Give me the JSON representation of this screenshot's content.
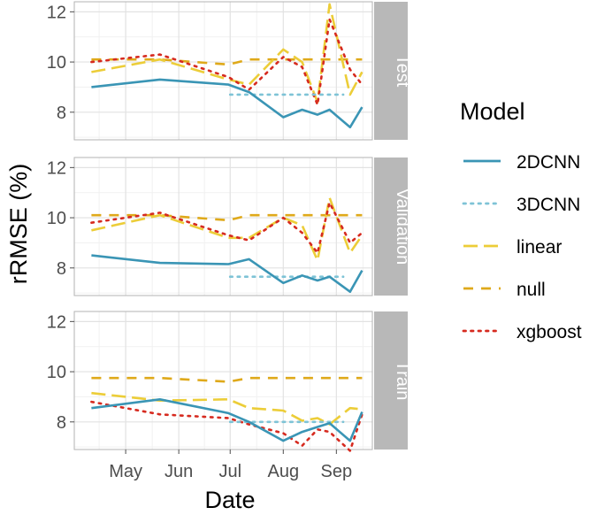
{
  "chart_data": {
    "type": "line",
    "xlabel": "Date",
    "ylabel": "rRMSE (%)",
    "x_tick_labels": [
      "May",
      "Jun",
      "Jul",
      "Aug",
      "Sep"
    ],
    "x_tick_dates": [
      "2019-05-01",
      "2019-06-01",
      "2019-07-01",
      "2019-08-01",
      "2019-09-01"
    ],
    "xlim": [
      "2019-04-01",
      "2019-09-22"
    ],
    "y_ticks": [
      8,
      10,
      12
    ],
    "ylim": [
      6.9,
      12.4
    ],
    "grid": true,
    "legend_title": "Model",
    "legend_position": "right",
    "panels": [
      {
        "label": "Test",
        "series": [
          {
            "name": "2DCNN",
            "x": [
              "2019-04-11",
              "2019-05-21",
              "2019-06-30",
              "2019-07-12",
              "2019-08-01",
              "2019-08-12",
              "2019-08-21",
              "2019-08-28",
              "2019-09-09",
              "2019-09-16"
            ],
            "y": [
              9.0,
              9.3,
              9.1,
              8.8,
              7.8,
              8.1,
              7.9,
              8.1,
              7.4,
              8.2
            ]
          },
          {
            "name": "3DCNN",
            "x": [
              "2019-07-01",
              "2019-09-05"
            ],
            "y": [
              8.7,
              8.7
            ]
          },
          {
            "name": "linear",
            "x": [
              "2019-04-11",
              "2019-05-21",
              "2019-06-30",
              "2019-07-12",
              "2019-08-01",
              "2019-08-12",
              "2019-08-21",
              "2019-08-28",
              "2019-09-09",
              "2019-09-16"
            ],
            "y": [
              9.6,
              10.1,
              9.3,
              9.1,
              10.5,
              10.0,
              8.4,
              12.3,
              8.7,
              9.6
            ]
          },
          {
            "name": "null",
            "x": [
              "2019-04-11",
              "2019-05-21",
              "2019-06-30",
              "2019-07-12",
              "2019-08-01",
              "2019-08-12",
              "2019-08-21",
              "2019-08-28",
              "2019-09-09",
              "2019-09-16"
            ],
            "y": [
              10.1,
              10.1,
              9.9,
              10.1,
              10.1,
              10.1,
              10.1,
              10.1,
              10.1,
              10.1
            ]
          },
          {
            "name": "xgboost",
            "x": [
              "2019-04-11",
              "2019-05-21",
              "2019-06-30",
              "2019-07-12",
              "2019-08-01",
              "2019-08-12",
              "2019-08-21",
              "2019-08-28",
              "2019-09-09",
              "2019-09-16"
            ],
            "y": [
              10.0,
              10.3,
              9.4,
              8.9,
              10.2,
              9.8,
              8.3,
              11.7,
              9.7,
              9.1
            ]
          }
        ]
      },
      {
        "label": "Validation",
        "series": [
          {
            "name": "2DCNN",
            "x": [
              "2019-04-11",
              "2019-05-21",
              "2019-06-30",
              "2019-07-12",
              "2019-08-01",
              "2019-08-12",
              "2019-08-21",
              "2019-08-28",
              "2019-09-09",
              "2019-09-16"
            ],
            "y": [
              8.5,
              8.2,
              8.15,
              8.35,
              7.4,
              7.7,
              7.5,
              7.65,
              7.05,
              7.9
            ]
          },
          {
            "name": "3DCNN",
            "x": [
              "2019-07-01",
              "2019-09-05"
            ],
            "y": [
              7.65,
              7.65
            ]
          },
          {
            "name": "linear",
            "x": [
              "2019-04-11",
              "2019-05-21",
              "2019-06-30",
              "2019-07-12",
              "2019-08-01",
              "2019-08-12",
              "2019-08-21",
              "2019-08-28",
              "2019-09-09",
              "2019-09-16"
            ],
            "y": [
              9.5,
              10.1,
              9.2,
              9.2,
              10.0,
              9.7,
              8.3,
              10.8,
              8.6,
              9.3
            ]
          },
          {
            "name": "null",
            "x": [
              "2019-04-11",
              "2019-05-21",
              "2019-06-30",
              "2019-07-12",
              "2019-08-01",
              "2019-08-12",
              "2019-08-21",
              "2019-08-28",
              "2019-09-09",
              "2019-09-16"
            ],
            "y": [
              10.1,
              10.1,
              9.9,
              10.1,
              10.1,
              10.1,
              10.1,
              10.1,
              10.1,
              10.1
            ]
          },
          {
            "name": "xgboost",
            "x": [
              "2019-04-11",
              "2019-05-21",
              "2019-06-30",
              "2019-07-12",
              "2019-08-01",
              "2019-08-12",
              "2019-08-21",
              "2019-08-28",
              "2019-09-09",
              "2019-09-16"
            ],
            "y": [
              9.8,
              10.2,
              9.3,
              9.1,
              10.0,
              9.4,
              8.6,
              10.6,
              9.0,
              9.4
            ]
          }
        ]
      },
      {
        "label": "Train",
        "series": [
          {
            "name": "2DCNN",
            "x": [
              "2019-04-11",
              "2019-05-21",
              "2019-06-30",
              "2019-07-12",
              "2019-08-01",
              "2019-08-12",
              "2019-08-21",
              "2019-08-28",
              "2019-09-09",
              "2019-09-16"
            ],
            "y": [
              8.55,
              8.9,
              8.35,
              8.0,
              7.25,
              7.6,
              7.8,
              7.95,
              7.25,
              8.4
            ]
          },
          {
            "name": "3DCNN",
            "x": [
              "2019-07-01",
              "2019-09-05"
            ],
            "y": [
              8.0,
              8.0
            ]
          },
          {
            "name": "linear",
            "x": [
              "2019-04-11",
              "2019-05-21",
              "2019-06-30",
              "2019-07-12",
              "2019-08-01",
              "2019-08-12",
              "2019-08-21",
              "2019-08-28",
              "2019-09-09",
              "2019-09-16"
            ],
            "y": [
              9.15,
              8.85,
              8.9,
              8.55,
              8.45,
              8.05,
              8.15,
              7.9,
              8.55,
              8.5
            ]
          },
          {
            "name": "null",
            "x": [
              "2019-04-11",
              "2019-05-21",
              "2019-06-30",
              "2019-07-12",
              "2019-08-01",
              "2019-08-12",
              "2019-08-21",
              "2019-08-28",
              "2019-09-09",
              "2019-09-16"
            ],
            "y": [
              9.75,
              9.75,
              9.6,
              9.75,
              9.75,
              9.75,
              9.75,
              9.75,
              9.75,
              9.75
            ]
          },
          {
            "name": "xgboost",
            "x": [
              "2019-04-11",
              "2019-05-21",
              "2019-06-30",
              "2019-07-12",
              "2019-08-01",
              "2019-08-12",
              "2019-08-21",
              "2019-08-28",
              "2019-09-09",
              "2019-09-16"
            ],
            "y": [
              8.8,
              8.3,
              8.15,
              7.9,
              7.55,
              7.05,
              7.7,
              7.6,
              6.85,
              8.3
            ]
          }
        ]
      }
    ],
    "series_styles": [
      {
        "name": "2DCNN",
        "color": "#3a95b5",
        "dash": "solid"
      },
      {
        "name": "3DCNN",
        "color": "#7ec3d6",
        "dash": "dotted"
      },
      {
        "name": "linear",
        "color": "#eccd38",
        "dash": "longdash"
      },
      {
        "name": "null",
        "color": "#dfa91a",
        "dash": "dashed"
      },
      {
        "name": "xgboost",
        "color": "#d62a1f",
        "dash": "dotted"
      }
    ]
  }
}
